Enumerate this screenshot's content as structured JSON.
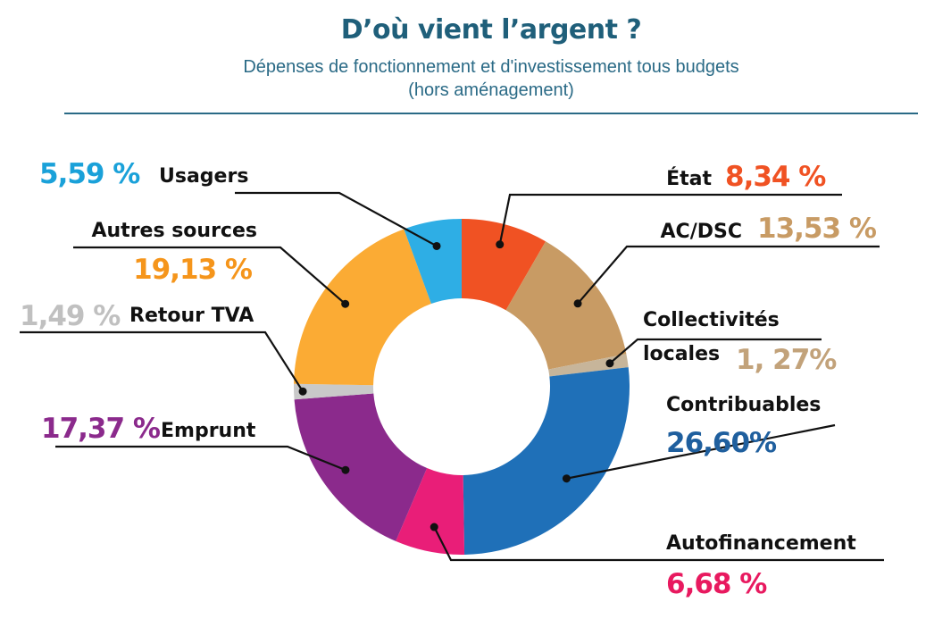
{
  "header": {
    "title": "D’où vient l’argent ?",
    "subtitle_line1": "Dépenses de fonctionnement et d'investissement tous budgets",
    "subtitle_line2": "(hors aménagement)"
  },
  "chart_data": {
    "type": "pie",
    "donut": true,
    "title": "D’où vient l’argent ?",
    "subtitle": "Dépenses de fonctionnement et d'investissement tous budgets (hors aménagement)",
    "slices": [
      {
        "key": "etat",
        "label": "État",
        "value": 8.34,
        "display": "8,34 %",
        "color": "#f05223"
      },
      {
        "key": "acdsc",
        "label": "AC/DSC",
        "value": 13.53,
        "display": "13,53 %",
        "color": "#c89b64"
      },
      {
        "key": "collectivites",
        "label_lines": [
          "Collectivités",
          "locales"
        ],
        "value": 1.27,
        "display": "1, 27%",
        "color": "#c7b59a",
        "display_color": "#c2a27a"
      },
      {
        "key": "contribuables",
        "label": "Contribuables",
        "value": 26.6,
        "display": "26,60%",
        "color": "#1f70b8",
        "display_color": "#1f5f9e"
      },
      {
        "key": "autofinancement",
        "label": "Autofinancement",
        "value": 6.68,
        "display": "6,68 %",
        "color": "#e91e78",
        "display_color": "#e8195f"
      },
      {
        "key": "emprunt",
        "label": "Emprunt",
        "value": 17.37,
        "display": "17,37 %",
        "color": "#8b2a8c"
      },
      {
        "key": "retour_tva",
        "label": "Retour TVA",
        "value": 1.49,
        "display": "1,49 %",
        "color": "#c9c9c9",
        "display_color": "#c0c0c0"
      },
      {
        "key": "autres_sources",
        "label": "Autres sources",
        "value": 19.13,
        "display": "19,13 %",
        "color": "#fbab34",
        "display_color": "#f5951b"
      },
      {
        "key": "usagers",
        "label": "Usagers",
        "value": 5.59,
        "display": "5,59 %",
        "color": "#2eaee5",
        "display_color": "#1aa1d9"
      }
    ]
  }
}
